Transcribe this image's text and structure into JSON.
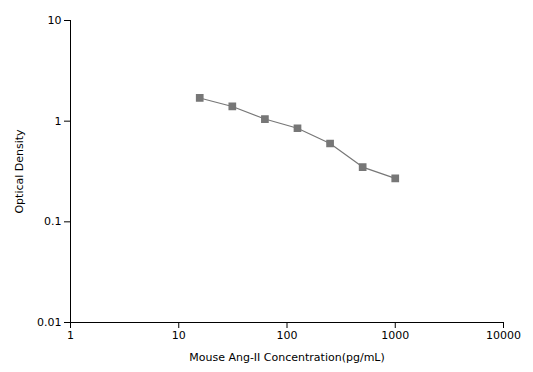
{
  "chart_data": {
    "type": "line",
    "x": [
      15.625,
      31.25,
      62.5,
      125,
      250,
      500,
      1000
    ],
    "values": [
      1.7,
      1.4,
      1.05,
      0.85,
      0.6,
      0.35,
      0.27
    ],
    "xlabel": "Mouse Ang-II Concentration(pg/mL)",
    "ylabel": "Optical Density",
    "xlim": [
      1,
      10000
    ],
    "ylim": [
      0.01,
      10
    ],
    "xticks": [
      1,
      10,
      100,
      1000,
      10000
    ],
    "yticks": [
      0.01,
      0.1,
      1,
      10
    ],
    "log": true,
    "grid": false,
    "color": "#777777",
    "marker": "square"
  }
}
